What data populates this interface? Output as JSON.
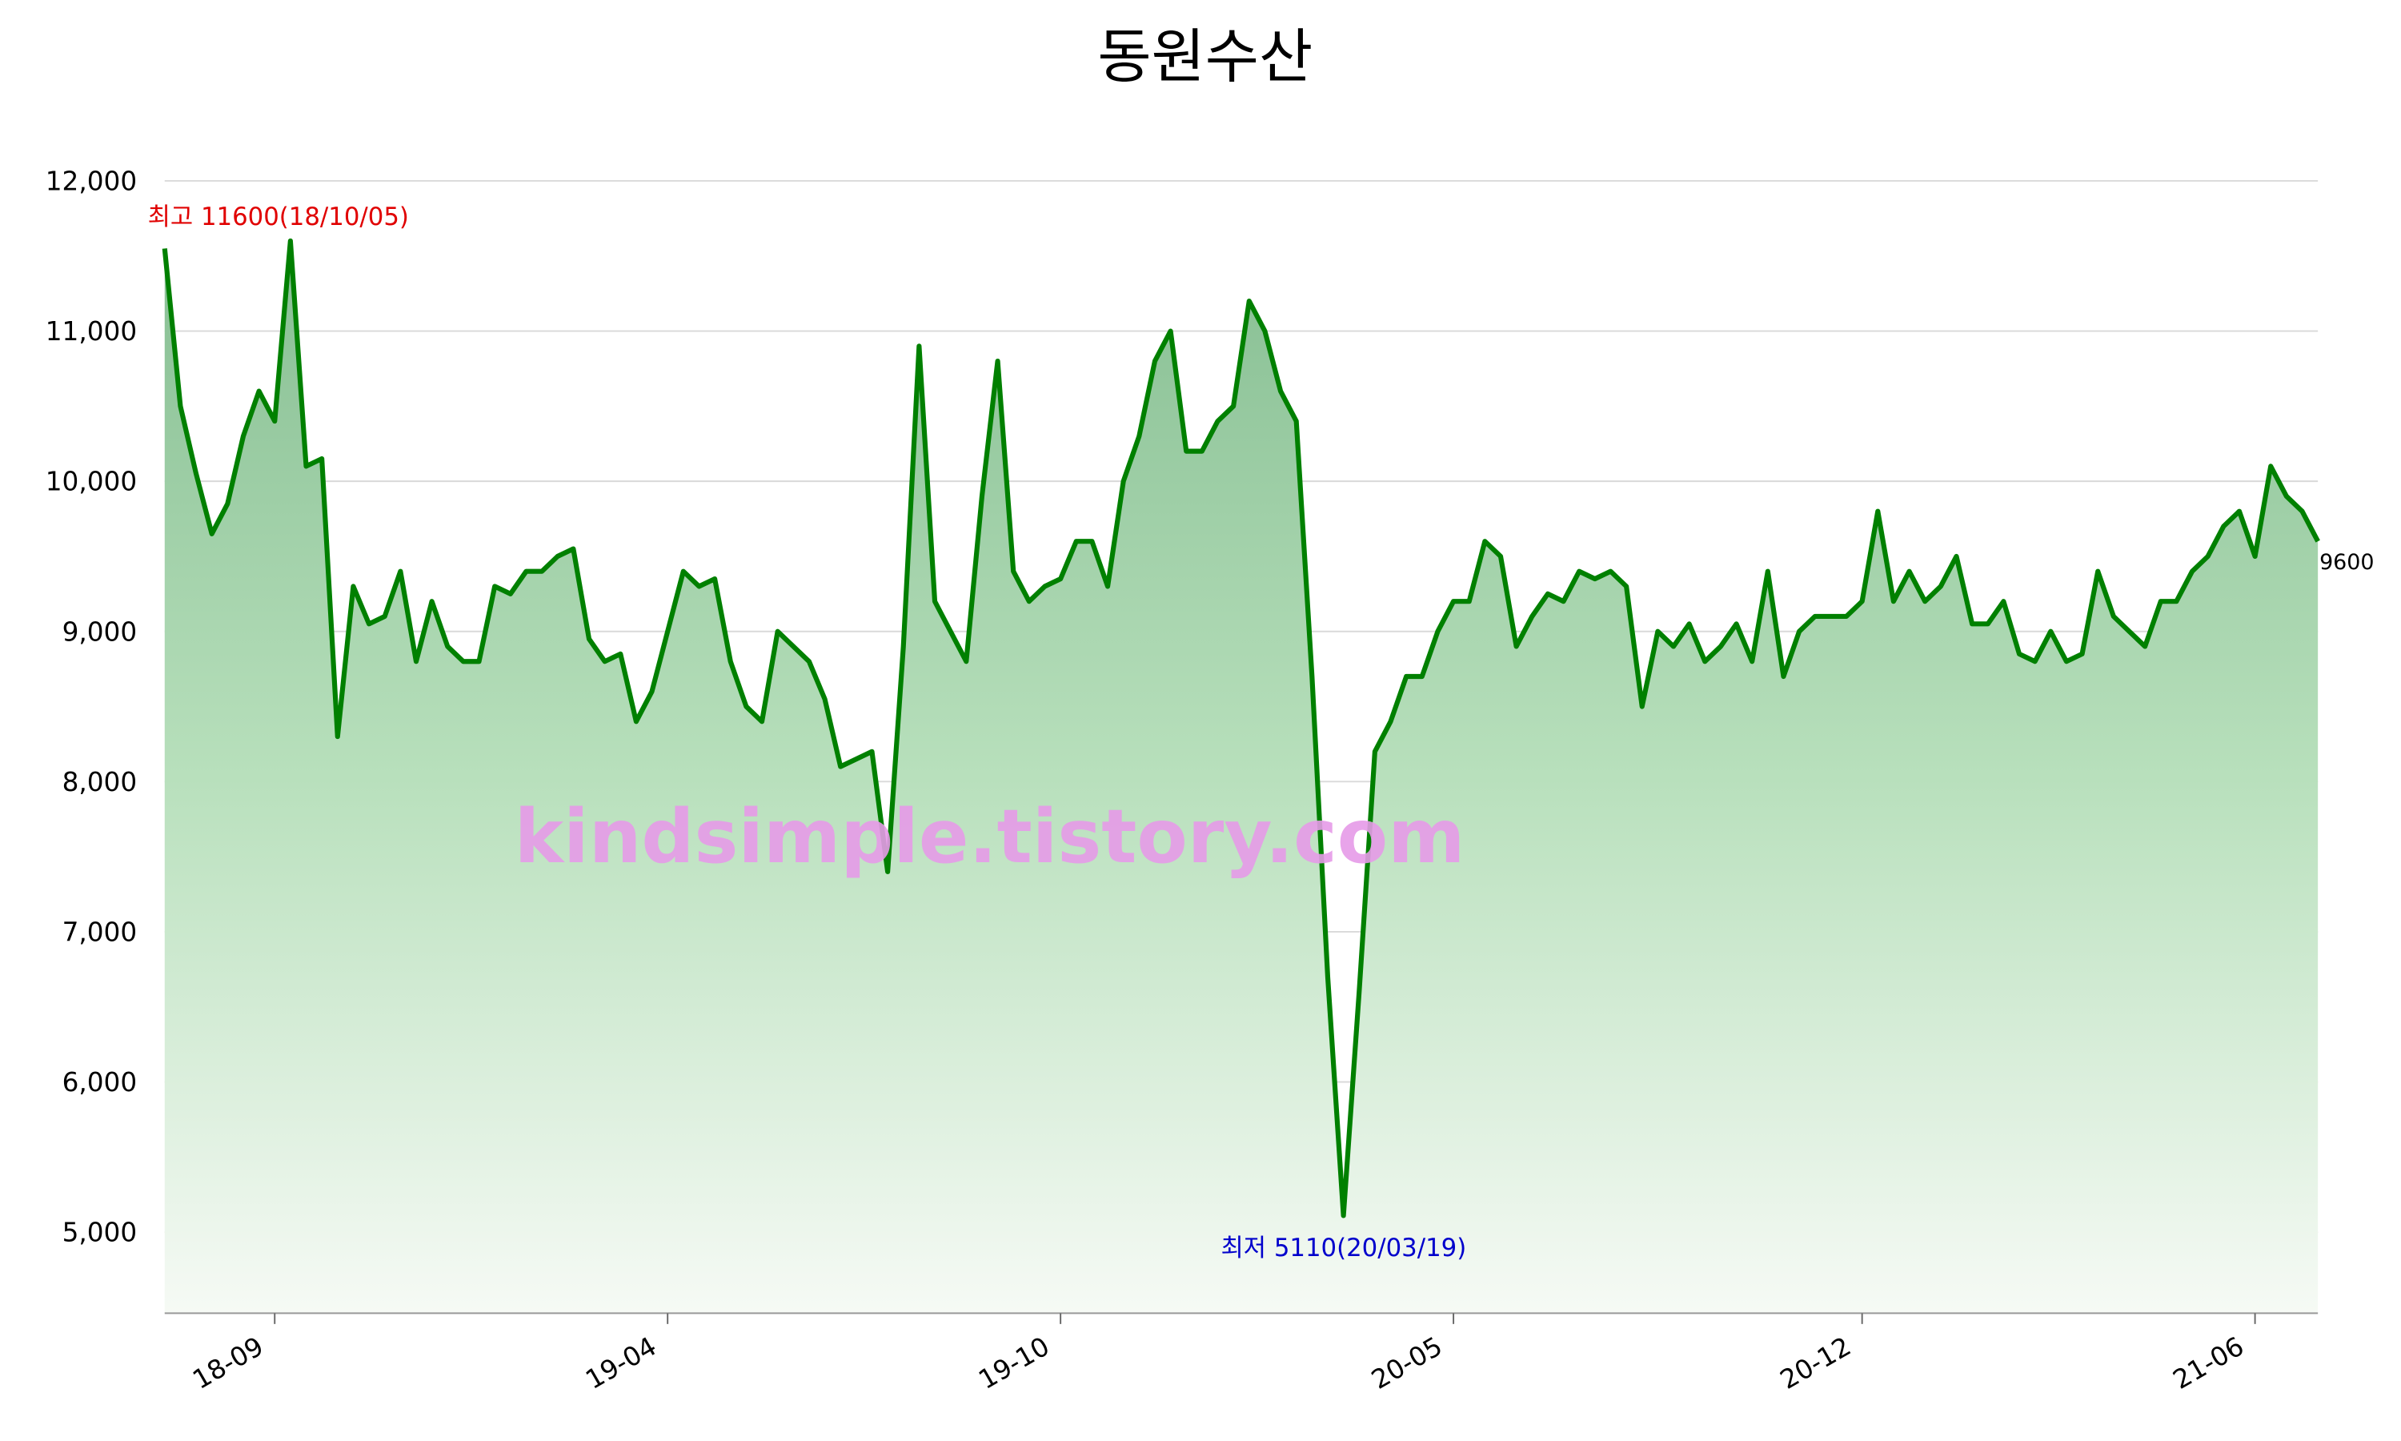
{
  "chart_data": {
    "type": "line",
    "title": "동원수산",
    "color": "#008000",
    "values": [
      11550,
      10500,
      10050,
      9650,
      9850,
      10300,
      10600,
      10400,
      11600,
      10100,
      10150,
      8300,
      9300,
      9050,
      9100,
      9400,
      8800,
      9200,
      8900,
      8800,
      8800,
      9300,
      9250,
      9400,
      9400,
      9500,
      9550,
      8950,
      8800,
      8850,
      8400,
      8600,
      9000,
      9400,
      9300,
      9350,
      8800,
      8500,
      8400,
      9000,
      8900,
      8800,
      8550,
      8100,
      8150,
      8200,
      7400,
      8900,
      10900,
      9200,
      9000,
      8800,
      9900,
      10800,
      9400,
      9200,
      9300,
      9350,
      9600,
      9600,
      9300,
      10000,
      10300,
      10800,
      11000,
      10200,
      10200,
      10400,
      10500,
      11200,
      11000,
      10600,
      10400,
      8700,
      6700,
      5110,
      6600,
      8200,
      8400,
      8700,
      8700,
      9000,
      9200,
      9200,
      9600,
      9500,
      8900,
      9100,
      9250,
      9200,
      9400,
      9350,
      9400,
      9300,
      8500,
      9000,
      8900,
      9050,
      8800,
      8900,
      9050,
      8800,
      9400,
      8700,
      9000,
      9100,
      9100,
      9100,
      9200,
      9800,
      9200,
      9400,
      9200,
      9300,
      9500,
      9050,
      9050,
      9200,
      8850,
      8800,
      9000,
      8800,
      8850,
      9400,
      9100,
      9000,
      8900,
      9200,
      9200,
      9400,
      9500,
      9700,
      9800,
      9500,
      10100,
      9900,
      9800,
      9600
    ],
    "xlim": [
      0,
      137
    ],
    "xticks": [
      {
        "value": 7,
        "label": "18-09"
      },
      {
        "value": 32,
        "label": "19-04"
      },
      {
        "value": 57,
        "label": "19-10"
      },
      {
        "value": 82,
        "label": "20-05"
      },
      {
        "value": 108,
        "label": "20-12"
      },
      {
        "value": 133,
        "label": "21-06"
      }
    ],
    "ylim": [
      4460,
      12000
    ],
    "yticks": [
      {
        "value": 5000,
        "label": "5,000"
      },
      {
        "value": 6000,
        "label": "6,000"
      },
      {
        "value": 7000,
        "label": "7,000"
      },
      {
        "value": 8000,
        "label": "8,000"
      },
      {
        "value": 9000,
        "label": "9,000"
      },
      {
        "value": 10000,
        "label": "10,000"
      },
      {
        "value": 11000,
        "label": "11,000"
      },
      {
        "value": 12000,
        "label": "12,000"
      }
    ],
    "grid": true,
    "max_annotation": "최고 11600(18/10/05)",
    "min_annotation": "최저 5110(20/03/19)",
    "watermark": "kindsimple.tistory.com"
  }
}
